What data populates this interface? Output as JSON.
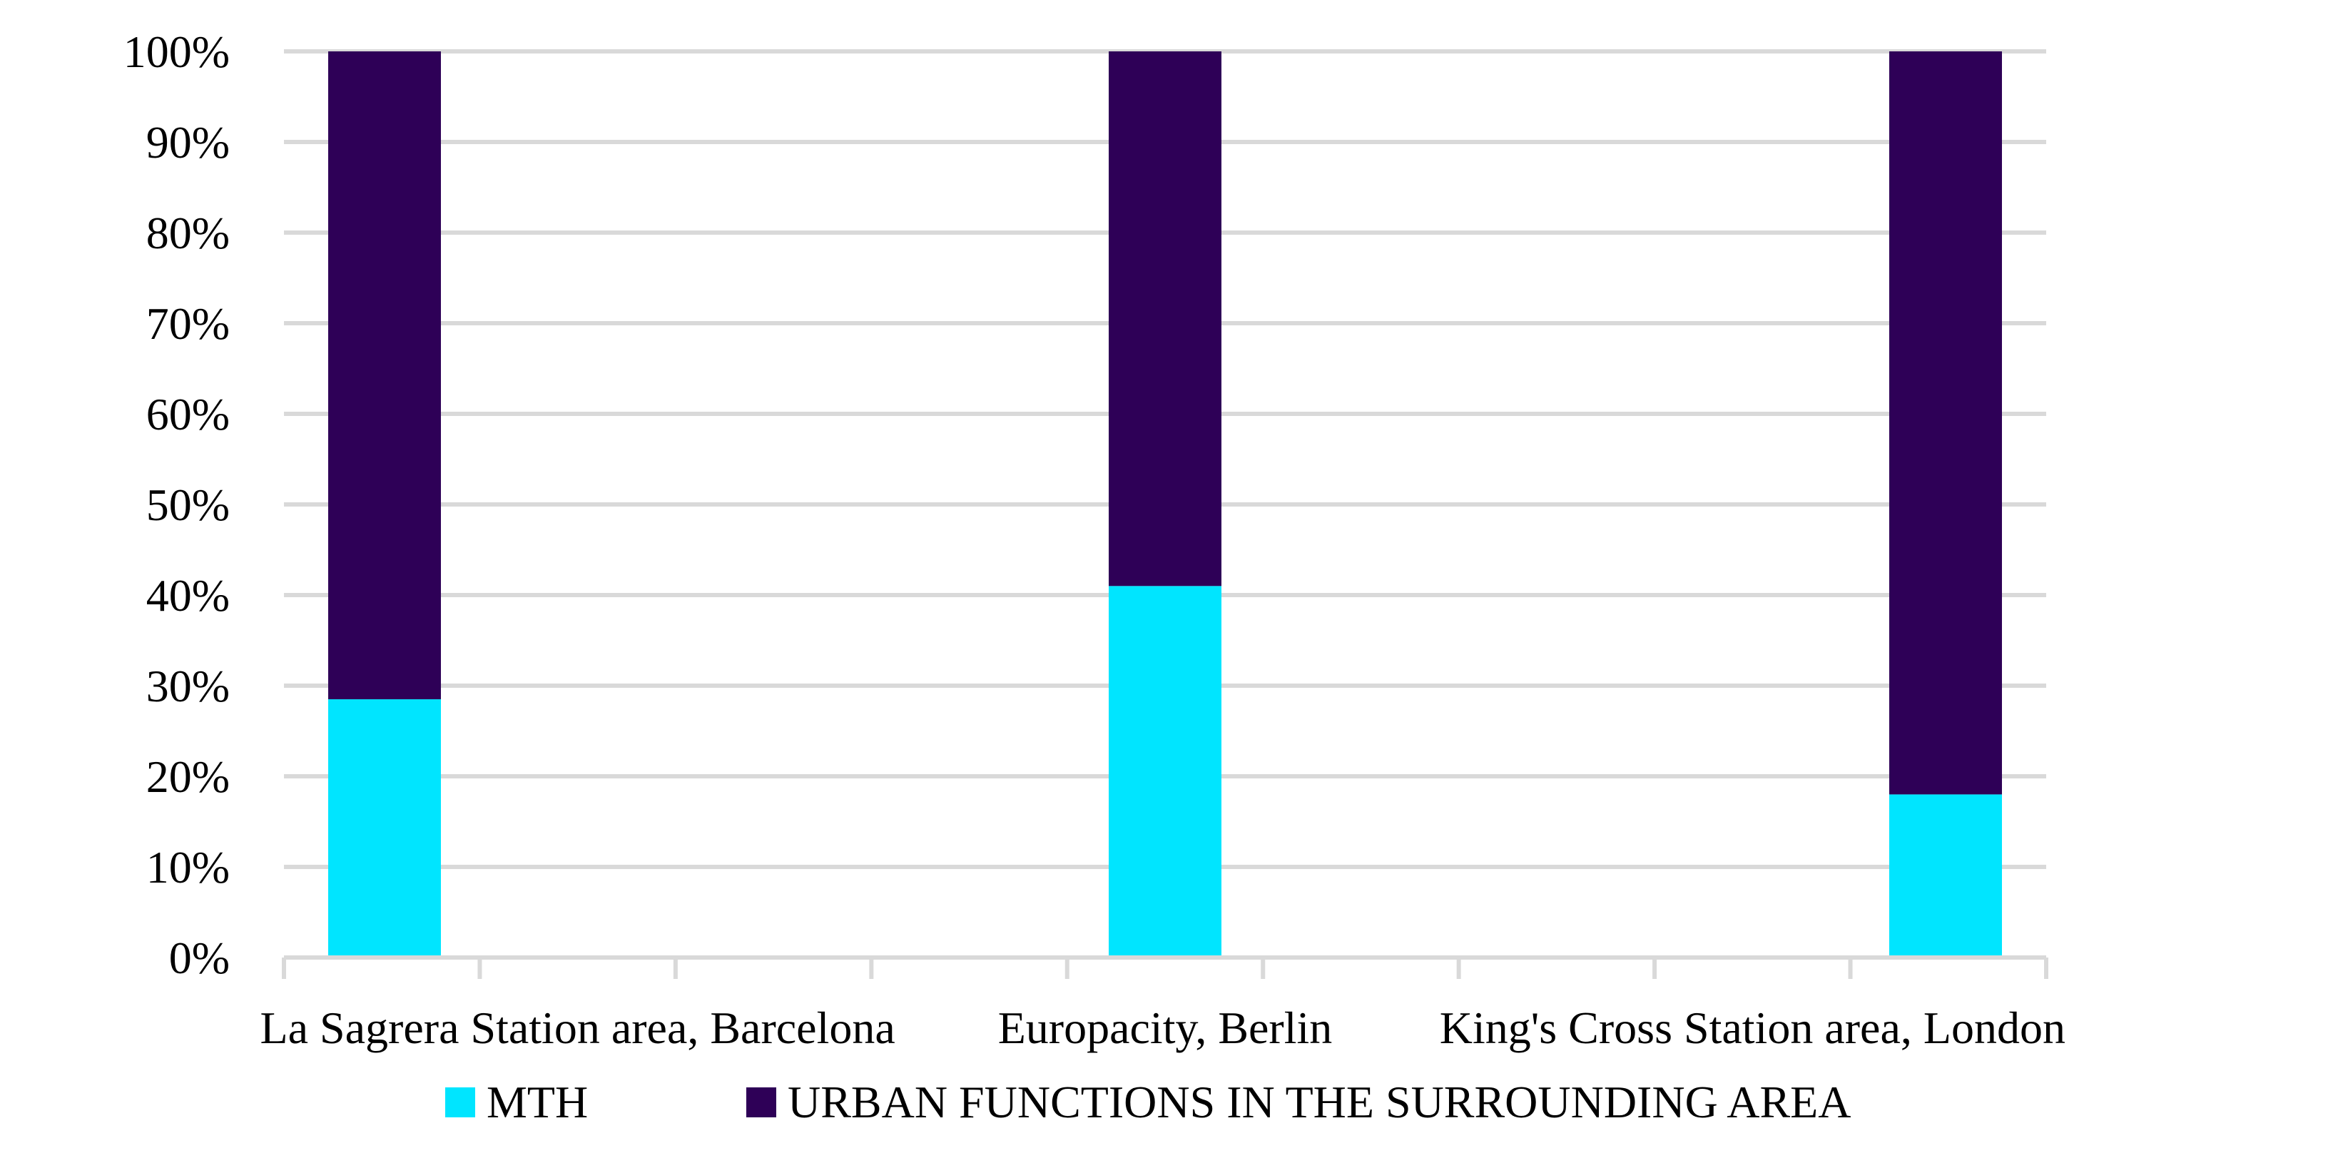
{
  "chart_data": {
    "type": "bar",
    "stacked": true,
    "categories": [
      "La Sagrera Station area, Barcelona",
      "Europacity, Berlin",
      "King's Cross Station area, London"
    ],
    "series": [
      {
        "name": "MTH",
        "color": "#00e5ff",
        "values": [
          28.5,
          41,
          18
        ]
      },
      {
        "name": "URBAN FUNCTIONS IN THE SURROUNDING AREA",
        "color": "#2e0057",
        "values": [
          71.5,
          59,
          82
        ]
      }
    ],
    "ylim": [
      0,
      100
    ],
    "yticks": [
      "0%",
      "10%",
      "20%",
      "30%",
      "40%",
      "50%",
      "60%",
      "70%",
      "80%",
      "90%",
      "100%"
    ],
    "grid": true,
    "legend_position": "bottom",
    "title": "",
    "xlabel": "",
    "ylabel": ""
  }
}
